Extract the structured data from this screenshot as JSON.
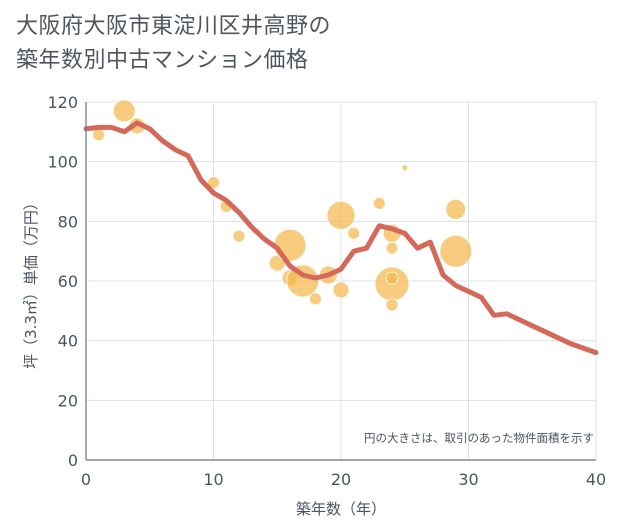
{
  "chart_data": {
    "type": "scatter",
    "title_lines": [
      "大阪府大阪市東淀川区井高野の",
      "築年数別中古マンション価格"
    ],
    "xlabel": "築年数（年）",
    "ylabel": "坪（3.3㎡）単価（万円）",
    "xlim": [
      0,
      40
    ],
    "ylim": [
      0,
      120
    ],
    "xticks": [
      0,
      10,
      20,
      30,
      40
    ],
    "yticks": [
      0,
      20,
      40,
      60,
      80,
      100,
      120
    ],
    "grid": true,
    "annotation": "円の大きさは、取引のあった物件面積を示す",
    "colors": {
      "bubble": "#f5b94d",
      "line": "#d4695a",
      "grid": "#dde1e6",
      "axis": "#6b7280"
    },
    "bubbles": [
      {
        "x": 1,
        "y": 109,
        "size": 6
      },
      {
        "x": 3,
        "y": 117,
        "size": 11
      },
      {
        "x": 4,
        "y": 112,
        "size": 8
      },
      {
        "x": 10,
        "y": 93,
        "size": 6
      },
      {
        "x": 11,
        "y": 85,
        "size": 6
      },
      {
        "x": 12,
        "y": 75,
        "size": 6
      },
      {
        "x": 15,
        "y": 66,
        "size": 8
      },
      {
        "x": 16,
        "y": 72,
        "size": 16
      },
      {
        "x": 16,
        "y": 61,
        "size": 8
      },
      {
        "x": 17,
        "y": 60,
        "size": 16
      },
      {
        "x": 18,
        "y": 54,
        "size": 6
      },
      {
        "x": 19,
        "y": 62,
        "size": 9
      },
      {
        "x": 20,
        "y": 82,
        "size": 14
      },
      {
        "x": 20,
        "y": 57,
        "size": 8
      },
      {
        "x": 21,
        "y": 76,
        "size": 6
      },
      {
        "x": 23,
        "y": 86,
        "size": 6
      },
      {
        "x": 24,
        "y": 76,
        "size": 9
      },
      {
        "x": 24,
        "y": 71,
        "size": 6
      },
      {
        "x": 24,
        "y": 59,
        "size": 17
      },
      {
        "x": 24,
        "y": 61,
        "size": 6
      },
      {
        "x": 24,
        "y": 52,
        "size": 6
      },
      {
        "x": 25,
        "y": 98,
        "size": 3
      },
      {
        "x": 29,
        "y": 84,
        "size": 10
      },
      {
        "x": 29,
        "y": 70,
        "size": 16
      }
    ],
    "line": {
      "x": [
        0,
        1,
        2,
        3,
        4,
        5,
        6,
        7,
        8,
        9,
        10,
        11,
        12,
        13,
        14,
        15,
        16,
        17,
        18,
        19,
        20,
        21,
        22,
        23,
        24,
        25,
        26,
        27,
        28,
        29,
        30,
        31,
        32,
        33,
        34,
        35,
        36,
        37,
        38,
        39,
        40
      ],
      "y": [
        111,
        111.5,
        111.5,
        110,
        113,
        111,
        107,
        104,
        102,
        94,
        89.5,
        87,
        83,
        78,
        74,
        71,
        65,
        62,
        61,
        62,
        64,
        70,
        71,
        78.5,
        77.5,
        76,
        71,
        73,
        62,
        58.5,
        56.5,
        54.5,
        48.5,
        49,
        47,
        45,
        43,
        41,
        39,
        37.5,
        36
      ]
    }
  }
}
